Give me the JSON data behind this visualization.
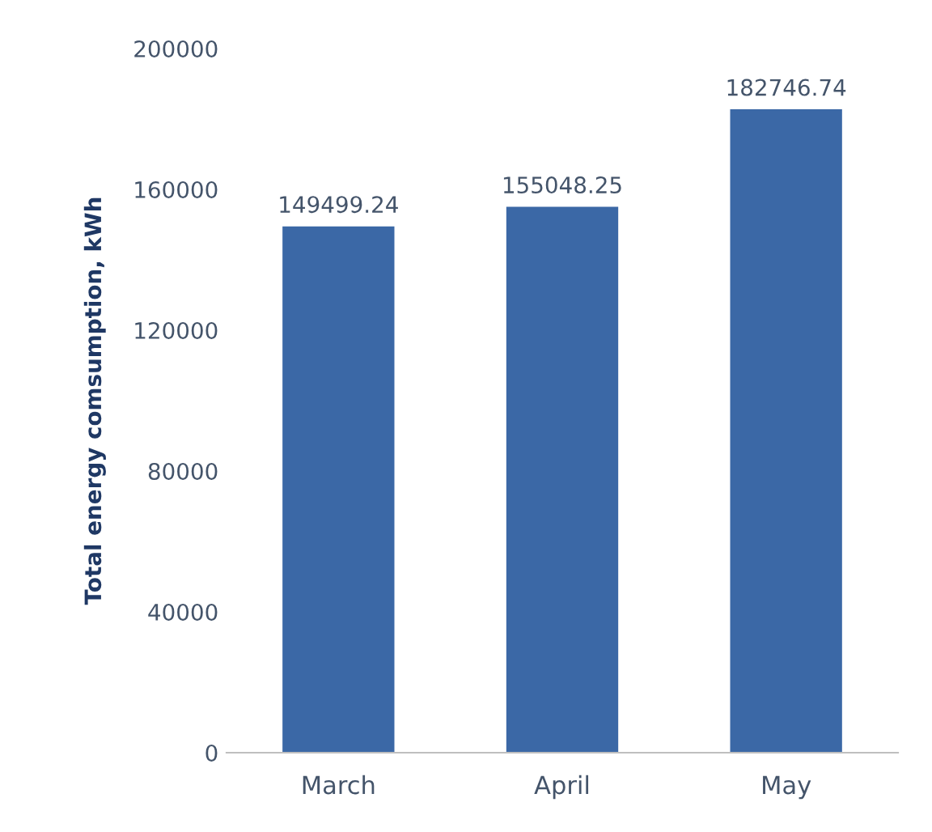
{
  "chart_data": {
    "type": "bar",
    "ylabel": "Total energy comsumption, kWh",
    "categories": [
      "March",
      "April",
      "May"
    ],
    "values": [
      149499.24,
      155048.25,
      182746.74
    ],
    "color": "#3b68a6",
    "ylim": [
      0,
      200000
    ],
    "yticks": [
      0,
      40000,
      80000,
      120000,
      160000,
      200000
    ],
    "grid": false,
    "data_labels": true
  }
}
